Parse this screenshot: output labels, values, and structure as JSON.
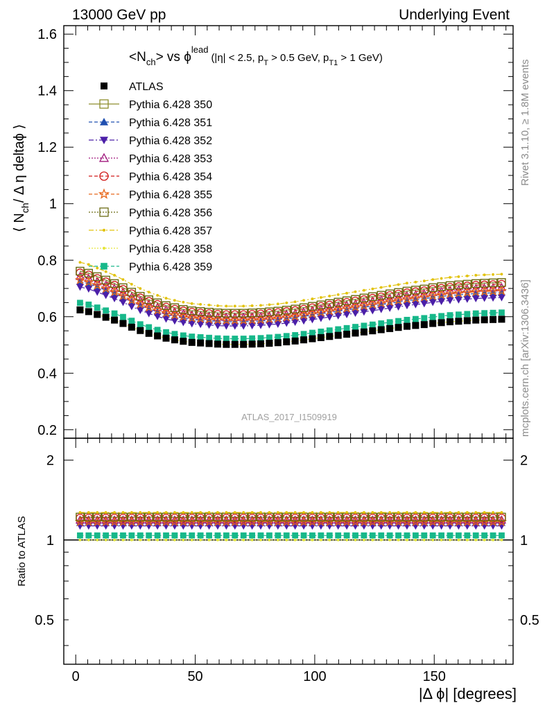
{
  "header": {
    "left": "13000 GeV pp",
    "right": "Underlying Event"
  },
  "side_labels": {
    "top": "Rivet 3.1.10, ≥ 1.8M events",
    "bottom": "mcplots.cern.ch [arXiv:1306.3436]"
  },
  "plot_title": {
    "main": "<N",
    "main_sub": "ch",
    "main_vs": "> vs ϕ",
    "main_sup": "lead",
    "cuts_1": "(|η| < 2.5, p",
    "cuts_sub1": "T",
    "cuts_2": " > 0.5 GeV, p",
    "cuts_sub2": "T1",
    "cuts_3": " > 1 GeV)"
  },
  "ylabel_main": {
    "a": "⟨ N",
    "sub": "ch",
    "b": "/ Δ η deltaϕ ⟩"
  },
  "ylabel_ratio": "Ratio to ATLAS",
  "xlabel": "|Δ ϕ| [degrees]",
  "analysis_tag": "ATLAS_2017_I1509919",
  "colors": {
    "atlas": "#000000",
    "s350": "#8c8c2a",
    "s351": "#1f4fb0",
    "s352": "#4b1fa8",
    "s353": "#a0197d",
    "s354": "#d01818",
    "s355": "#e8671a",
    "s356": "#6b6b14",
    "s357": "#e2c20a",
    "s358": "#e6e63a",
    "s359": "#17b88a"
  },
  "chart_data": {
    "type": "scatter",
    "x": [
      1.8,
      5.4,
      9,
      12.6,
      16.2,
      19.8,
      23.4,
      27,
      30.6,
      34.2,
      37.8,
      41.4,
      45,
      48.6,
      52.2,
      55.8,
      59.4,
      63,
      66.6,
      70.2,
      73.8,
      77.4,
      81,
      84.6,
      88.2,
      91.8,
      95.4,
      99,
      102.6,
      106.2,
      109.8,
      113.4,
      117,
      120.6,
      124.2,
      127.8,
      131.4,
      135,
      138.6,
      142.2,
      145.8,
      149.4,
      153,
      156.6,
      160.2,
      163.8,
      167.4,
      171,
      174.6,
      178.2
    ],
    "xlim": [
      -5,
      183
    ],
    "xticks": [
      0,
      50,
      100,
      150
    ],
    "main_panel": {
      "ylim": [
        0.17,
        1.63
      ],
      "yticks": [
        0.2,
        0.4,
        0.6,
        0.8,
        1,
        1.2,
        1.4,
        1.6
      ]
    },
    "ratio_panel": {
      "ylim": [
        0.34,
        2.42
      ],
      "yticks": [
        0.5,
        1,
        2
      ],
      "reference": 1
    },
    "atlas": {
      "name": "ATLAS",
      "y": [
        0.624,
        0.618,
        0.608,
        0.598,
        0.588,
        0.576,
        0.563,
        0.551,
        0.541,
        0.532,
        0.524,
        0.518,
        0.513,
        0.509,
        0.507,
        0.505,
        0.503,
        0.502,
        0.502,
        0.502,
        0.503,
        0.504,
        0.506,
        0.508,
        0.511,
        0.514,
        0.518,
        0.522,
        0.526,
        0.53,
        0.534,
        0.538,
        0.542,
        0.546,
        0.55,
        0.554,
        0.558,
        0.562,
        0.566,
        0.569,
        0.572,
        0.576,
        0.579,
        0.582,
        0.584,
        0.586,
        0.588,
        0.589,
        0.59,
        0.591
      ]
    },
    "series": [
      {
        "name": "Pythia 6.428 350",
        "key": "s350",
        "ratio": 1.22,
        "marker": "open-square",
        "line": "solid"
      },
      {
        "name": "Pythia 6.428 351",
        "key": "s351",
        "ratio": 1.16,
        "marker": "triangle-up",
        "line": "dashed"
      },
      {
        "name": "Pythia 6.428 352",
        "key": "s352",
        "ratio": 1.13,
        "marker": "triangle-down",
        "line": "dashdot"
      },
      {
        "name": "Pythia 6.428 353",
        "key": "s353",
        "ratio": 1.19,
        "marker": "open-triangle",
        "line": "dotted"
      },
      {
        "name": "Pythia 6.428 354",
        "key": "s354",
        "ratio": 1.21,
        "marker": "open-circle",
        "line": "dashed"
      },
      {
        "name": "Pythia 6.428 355",
        "key": "s355",
        "ratio": 1.17,
        "marker": "open-star",
        "line": "dashed"
      },
      {
        "name": "Pythia 6.428 356",
        "key": "s356",
        "ratio": 1.22,
        "marker": "open-square",
        "line": "dotted"
      },
      {
        "name": "Pythia 6.428 357",
        "key": "s357",
        "ratio": 1.27,
        "marker": "small-dot",
        "line": "dashdot"
      },
      {
        "name": "Pythia 6.428 358",
        "key": "s358",
        "ratio": 1.0,
        "marker": "small-dot",
        "line": "dotted"
      },
      {
        "name": "Pythia 6.428 359",
        "key": "s359",
        "ratio": 1.04,
        "marker": "filled-square",
        "line": "dashed"
      }
    ]
  }
}
